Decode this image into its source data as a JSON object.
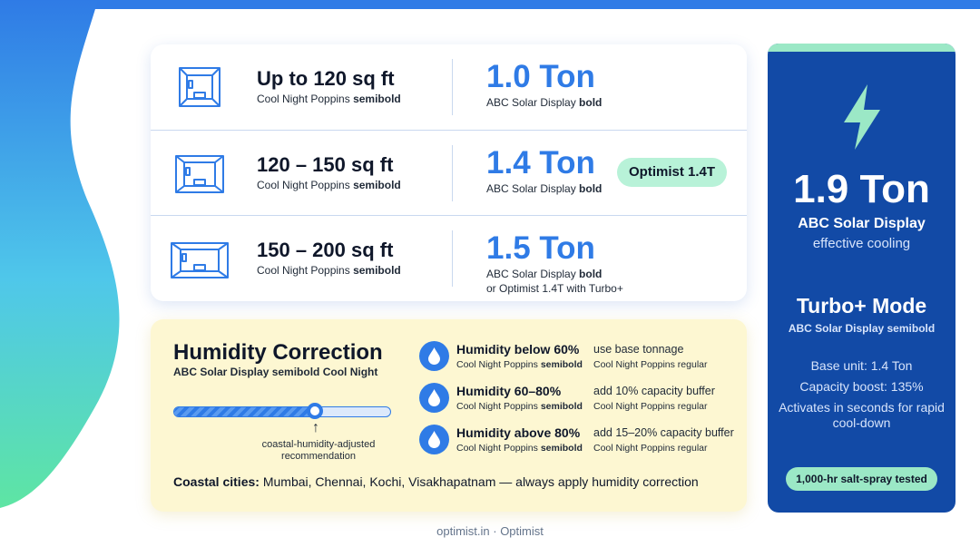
{
  "colors": {
    "accent": "#2f7be6",
    "panel": "#124aa6",
    "mint": "#9be8c6",
    "humidity_bg": "#fdf7d2"
  },
  "rooms": [
    {
      "icon": "small-room-icon",
      "area": "Up to 120 sq ft",
      "area_font": "Cool Night Poppins",
      "area_weight": "semibold",
      "ton": "1.0 Ton",
      "ton_font": "ABC Solar Display",
      "ton_weight": "bold",
      "ton_note": ""
    },
    {
      "icon": "medium-room-icon",
      "area": "120 – 150 sq ft",
      "area_font": "Cool Night Poppins",
      "area_weight": "semibold",
      "ton": "1.4 Ton",
      "ton_font": "ABC Solar Display",
      "ton_weight": "bold",
      "ton_note": "",
      "model": "Optimist 1.4T"
    },
    {
      "icon": "large-room-icon",
      "area": "150 – 200 sq ft",
      "area_font": "Cool Night Poppins",
      "area_weight": "semibold",
      "ton": "1.5 Ton",
      "ton_font": "ABC Solar Display",
      "ton_weight": "bold",
      "ton_note": "or Optimist 1.4T with Turbo+"
    }
  ],
  "humidity": {
    "title": "Humidity Correction",
    "subtitle": "ABC Solar Display semibold Cool Night",
    "slider_fraction": 0.65,
    "slider_caption": "coastal-humidity-adjusted recommendation",
    "rows": [
      {
        "icon": "water-drop-icon",
        "label": "Humidity below 60%",
        "label_font": "Cool Night Poppins",
        "label_weight": "semibold",
        "action": "use base tonnage",
        "action_font": "Cool Night Poppins regular"
      },
      {
        "icon": "water-drop-icon",
        "label": "Humidity 60–80%",
        "label_font": "Cool Night Poppins",
        "label_weight": "semibold",
        "action": "add 10% capacity buffer",
        "action_font": "Cool Night Poppins regular"
      },
      {
        "icon": "water-drop-icon",
        "label": "Humidity above 80%",
        "label_font": "Cool Night Poppins",
        "label_weight": "semibold",
        "action": "add 15–20% capacity buffer",
        "action_font": "Cool Night Poppins regular"
      }
    ],
    "coastal_label": "Coastal cities:",
    "coastal_text": "Mumbai, Chennai, Kochi, Visakhapatnam — always apply humidity correction"
  },
  "side": {
    "icon": "lightning-bolt-icon",
    "ton": "1.9 Ton",
    "font": "ABC Solar Display",
    "effective": "effective cooling",
    "mode": "Turbo+ Mode",
    "mode_sub": "ABC Solar Display semibold",
    "lines": [
      "Base unit: 1.4 Ton",
      "Capacity boost: 135%",
      "Activates in seconds for rapid cool-down"
    ],
    "badge": "1,000-hr salt-spray tested"
  },
  "footer": "optimist.in · Optimist"
}
